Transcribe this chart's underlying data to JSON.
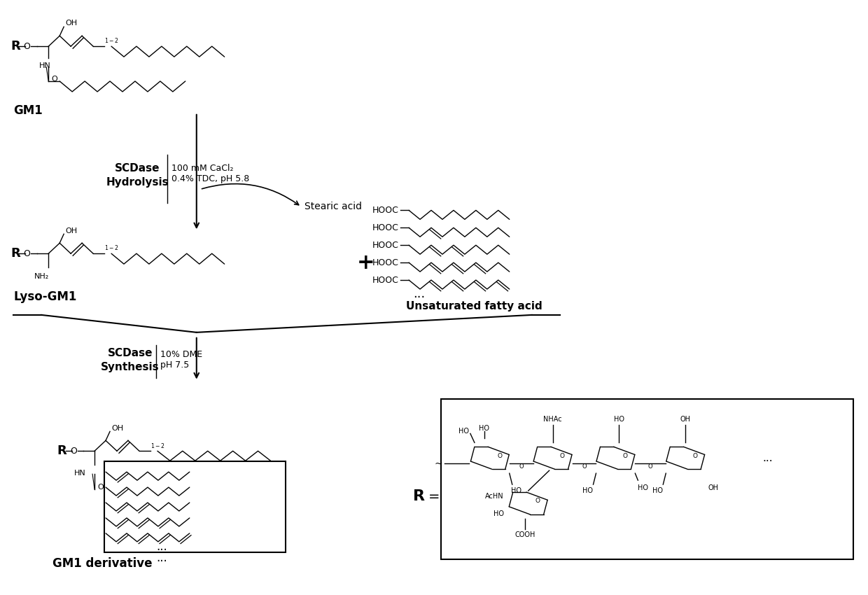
{
  "bg_color": "#ffffff",
  "line_color": "#000000",
  "fig_width": 12.4,
  "fig_height": 8.5,
  "gm1_label": "GM1",
  "lyso_label": "Lyso-GM1",
  "deriv_label": "GM1 derivative",
  "hydrolysis_left": "SCDase\nHydrolysis",
  "hydrolysis_right": "100 mM CaCl₂\n0.4% TDC, pH 5.8",
  "stearic_label": "Stearic acid",
  "synthesis_left": "SCDase\nSynthesis",
  "synthesis_right": "10% DME\npH 7.5",
  "unsaturated_label": "Unsaturated fatty acid",
  "dots": "...",
  "OH_label": "OH",
  "NH2_label": "NH₂",
  "HN_label": "HN",
  "O_label": "O",
  "HOOC": "HOOC",
  "NHAc_label": "NHAc",
  "AcHN_label": "AcHN",
  "HO_label": "HO",
  "COOH_label": "COOH"
}
